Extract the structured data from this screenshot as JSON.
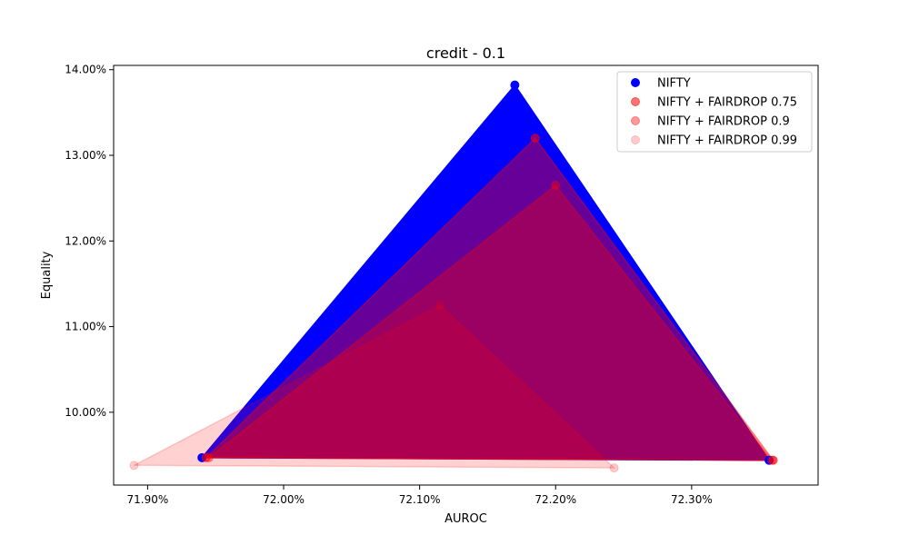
{
  "chart_data": {
    "type": "scatter",
    "title": "credit - 0.1",
    "xlabel": "AUROC",
    "ylabel": "Equality",
    "xlim": [
      71.875,
      72.393
    ],
    "ylim": [
      9.15,
      14.05
    ],
    "xticks": [
      71.9,
      72.0,
      72.1,
      72.2,
      72.3
    ],
    "xtick_labels": [
      "71.90%",
      "72.00%",
      "72.10%",
      "72.20%",
      "72.30%"
    ],
    "yticks": [
      10.0,
      11.0,
      12.0,
      13.0,
      14.0
    ],
    "ytick_labels": [
      "10.00%",
      "11.00%",
      "12.00%",
      "13.00%",
      "14.00%"
    ],
    "grid": false,
    "legend_position": "top-right",
    "series": [
      {
        "name": "NIFTY",
        "color": "#0000ff",
        "marker_alpha": 1.0,
        "fill_alpha": 1.0,
        "points": [
          [
            71.94,
            9.47
          ],
          [
            72.17,
            13.82
          ],
          [
            72.357,
            9.44
          ]
        ]
      },
      {
        "name": "NIFTY + FAIRDROP 0.75",
        "color": "#ff0000",
        "marker_alpha": 0.55,
        "fill_alpha": 0.4,
        "points": [
          [
            71.943,
            9.47
          ],
          [
            72.185,
            13.2
          ],
          [
            72.36,
            9.44
          ]
        ]
      },
      {
        "name": "NIFTY + FAIRDROP 0.9",
        "color": "#ff0000",
        "marker_alpha": 0.4,
        "fill_alpha": 0.35,
        "points": [
          [
            71.945,
            9.47
          ],
          [
            72.2,
            12.65
          ],
          [
            72.359,
            9.44
          ]
        ]
      },
      {
        "name": "NIFTY + FAIRDROP 0.99",
        "color": "#ff0000",
        "marker_alpha": 0.2,
        "fill_alpha": 0.18,
        "points": [
          [
            71.89,
            9.38
          ],
          [
            72.115,
            11.25
          ],
          [
            72.243,
            9.35
          ]
        ]
      }
    ]
  }
}
